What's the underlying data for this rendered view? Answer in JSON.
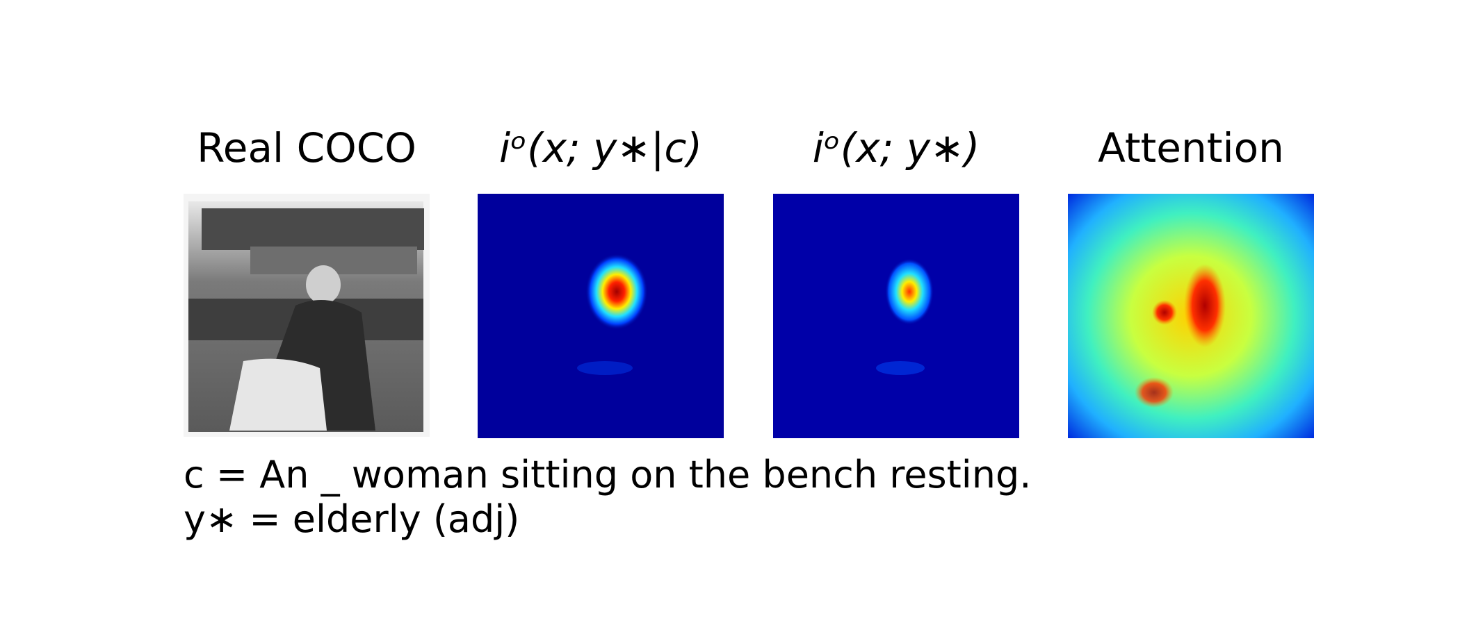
{
  "panels": [
    {
      "title": "Real COCO"
    },
    {
      "title": "iᵒ(x; y∗|c)"
    },
    {
      "title": "iᵒ(x; y∗)"
    },
    {
      "title": "Attention"
    }
  ],
  "caption": {
    "lines": [
      "c = An _ woman sitting on the bench resting.",
      "y∗ = elderly (adj)"
    ]
  }
}
